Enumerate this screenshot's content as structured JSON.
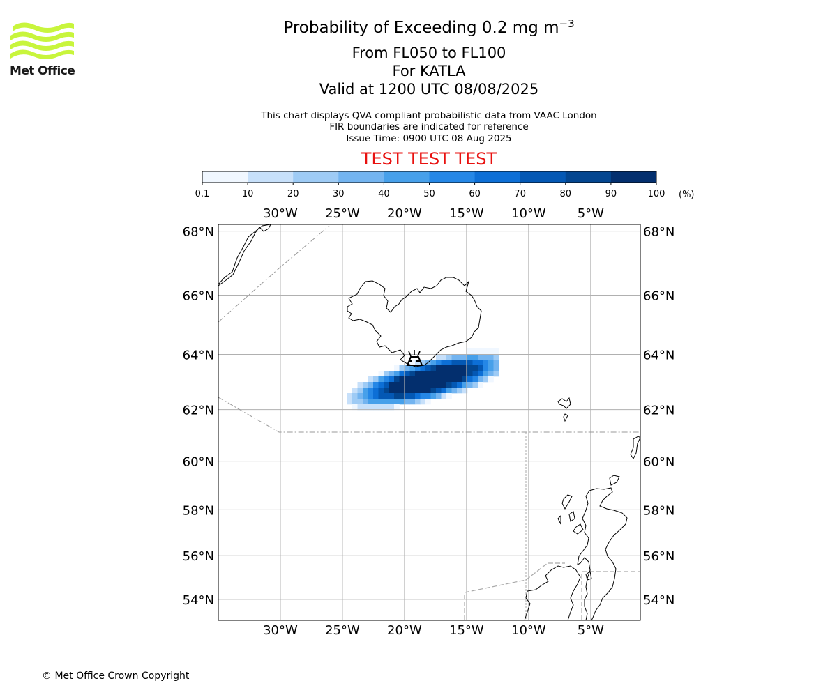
{
  "header": {
    "logo_text": "Met Office",
    "title": "Probability of Exceeding 0.2 mg m",
    "title_superscript": "−3",
    "subtitle_lines": [
      "From FL050 to FL100",
      "For KATLA",
      "Valid at 1200 UTC 08/08/2025"
    ],
    "info_lines": [
      "This chart displays QVA compliant probabilistic data from VAAC London",
      "FIR boundaries are indicated for reference",
      "Issue Time: 0900 UTC 08 Aug 2025"
    ],
    "test_banner": "TEST TEST TEST"
  },
  "colorbar": {
    "ticks": [
      "0.1",
      "10",
      "20",
      "30",
      "40",
      "50",
      "60",
      "70",
      "80",
      "90",
      "100"
    ],
    "unit": "(%)",
    "colors": [
      "#f0f7ff",
      "#c7e0fa",
      "#9ecbf5",
      "#73b4f0",
      "#47a0ea",
      "#2587e6",
      "#0d6fd6",
      "#0458b4",
      "#034690",
      "#032f6e"
    ]
  },
  "map": {
    "lon_range": [
      -35,
      -1
    ],
    "lat_range": [
      53,
      68.2
    ],
    "lon_ticks": [
      {
        "value": -30,
        "label": "30°W"
      },
      {
        "value": -25,
        "label": "25°W"
      },
      {
        "value": -20,
        "label": "20°W"
      },
      {
        "value": -15,
        "label": "15°W"
      },
      {
        "value": -10,
        "label": "10°W"
      },
      {
        "value": -5,
        "label": "5°W"
      }
    ],
    "lat_ticks": [
      {
        "value": 68,
        "label": "68°N"
      },
      {
        "value": 66,
        "label": "66°N"
      },
      {
        "value": 64,
        "label": "64°N"
      },
      {
        "value": 62,
        "label": "62°N"
      },
      {
        "value": 60,
        "label": "60°N"
      },
      {
        "value": 58,
        "label": "58°N"
      },
      {
        "value": 56,
        "label": "56°N"
      },
      {
        "value": 54,
        "label": "54°N"
      }
    ],
    "volcano_marker": {
      "lon": -19.0,
      "lat": 63.6,
      "icon": "volcano-icon"
    }
  },
  "footer": {
    "copyright": "© Met Office Crown Copyright"
  }
}
